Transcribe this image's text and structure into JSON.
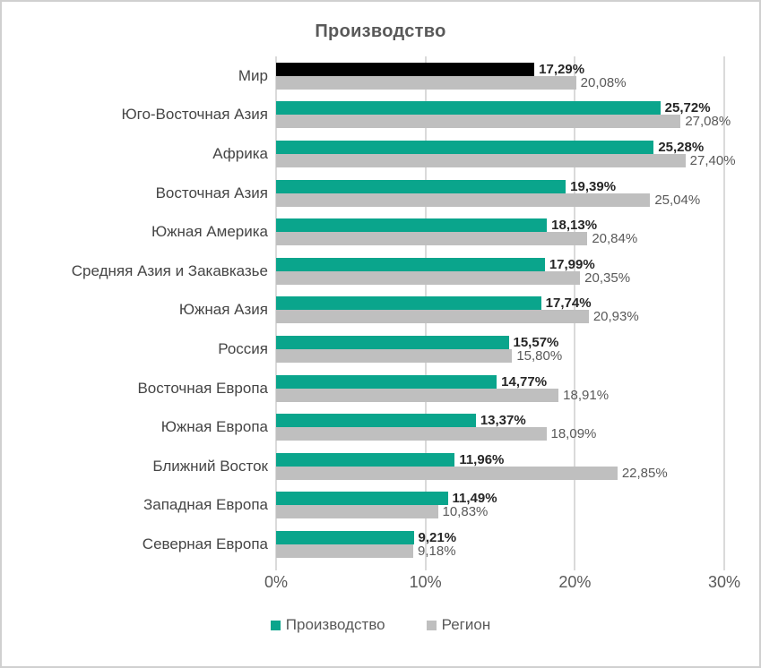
{
  "title": "Производство",
  "colors": {
    "production": "#0aa58c",
    "world_highlight": "#000000",
    "region": "#bfbfbf",
    "gridline": "#dadada",
    "title_text": "#595959",
    "category_text": "#454545",
    "production_label_text": "#262626",
    "region_label_text": "#595959",
    "frame_border": "#d0d0d0"
  },
  "chart_data": {
    "type": "bar",
    "orientation": "horizontal",
    "title": "Производство",
    "categories": [
      "Мир",
      "Юго-Восточная Азия",
      "Африка",
      "Восточная Азия",
      "Южная Америка",
      "Средняя Азия и Закавказье",
      "Южная Азия",
      "Россия",
      "Восточная Европа",
      "Южная Европа",
      "Ближний Восток",
      "Западная Европа",
      "Северная Европа"
    ],
    "series": [
      {
        "name": "Производство",
        "values": [
          17.29,
          25.72,
          25.28,
          19.39,
          18.13,
          17.99,
          17.74,
          15.57,
          14.77,
          13.37,
          11.96,
          11.49,
          9.21
        ],
        "labels": [
          "17,29%",
          "25,72%",
          "25,28%",
          "19,39%",
          "18,13%",
          "17,99%",
          "17,74%",
          "15,57%",
          "14,77%",
          "13,37%",
          "11,96%",
          "11,49%",
          "9,21%"
        ],
        "colors": [
          "#000000",
          "#0aa58c",
          "#0aa58c",
          "#0aa58c",
          "#0aa58c",
          "#0aa58c",
          "#0aa58c",
          "#0aa58c",
          "#0aa58c",
          "#0aa58c",
          "#0aa58c",
          "#0aa58c",
          "#0aa58c"
        ]
      },
      {
        "name": "Регион",
        "values": [
          20.08,
          27.08,
          27.4,
          25.04,
          20.84,
          20.35,
          20.93,
          15.8,
          18.91,
          18.09,
          22.85,
          10.83,
          9.18
        ],
        "labels": [
          "20,08%",
          "27,08%",
          "27,40%",
          "25,04%",
          "20,84%",
          "20,35%",
          "20,93%",
          "15,80%",
          "18,91%",
          "18,09%",
          "22,85%",
          "10,83%",
          "9,18%"
        ],
        "colors": [
          "#bfbfbf",
          "#bfbfbf",
          "#bfbfbf",
          "#bfbfbf",
          "#bfbfbf",
          "#bfbfbf",
          "#bfbfbf",
          "#bfbfbf",
          "#bfbfbf",
          "#bfbfbf",
          "#bfbfbf",
          "#bfbfbf",
          "#bfbfbf"
        ]
      }
    ],
    "xlim": [
      0,
      30
    ],
    "x_ticks": [
      {
        "value": 0,
        "label": "0%"
      },
      {
        "value": 10,
        "label": "10%"
      },
      {
        "value": 20,
        "label": "20%"
      },
      {
        "value": 30,
        "label": "30%"
      }
    ],
    "grid": true,
    "legend_position": "bottom",
    "value_labels": "outside-end"
  },
  "legend": {
    "items": [
      {
        "label": "Производство",
        "color": "#0aa58c"
      },
      {
        "label": "Регион",
        "color": "#bfbfbf"
      }
    ]
  }
}
